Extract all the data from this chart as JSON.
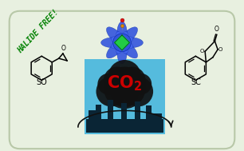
{
  "bg_color": "#e8f0e0",
  "border_color": "#b8c8a8",
  "title_text": "HALIDE FREE!",
  "title_color": "#008000",
  "so_label": "SO",
  "sc_label": "SC",
  "co2_color": "#cc0000",
  "factory_bg": "#55bbdd",
  "smoke_dark": "#111111",
  "arrow_color": "#111111",
  "poc_center_color": "#22cc44",
  "poc_outer_color": "#3355dd",
  "poc_outer_dark": "#1133aa",
  "poc_inner_color": "#4466ee",
  "poc_dot_red": "#dd1111",
  "poc_dot_orange": "#dd8800",
  "factory_silhouette": "#0a2535",
  "factory_detail": "#1a4560"
}
